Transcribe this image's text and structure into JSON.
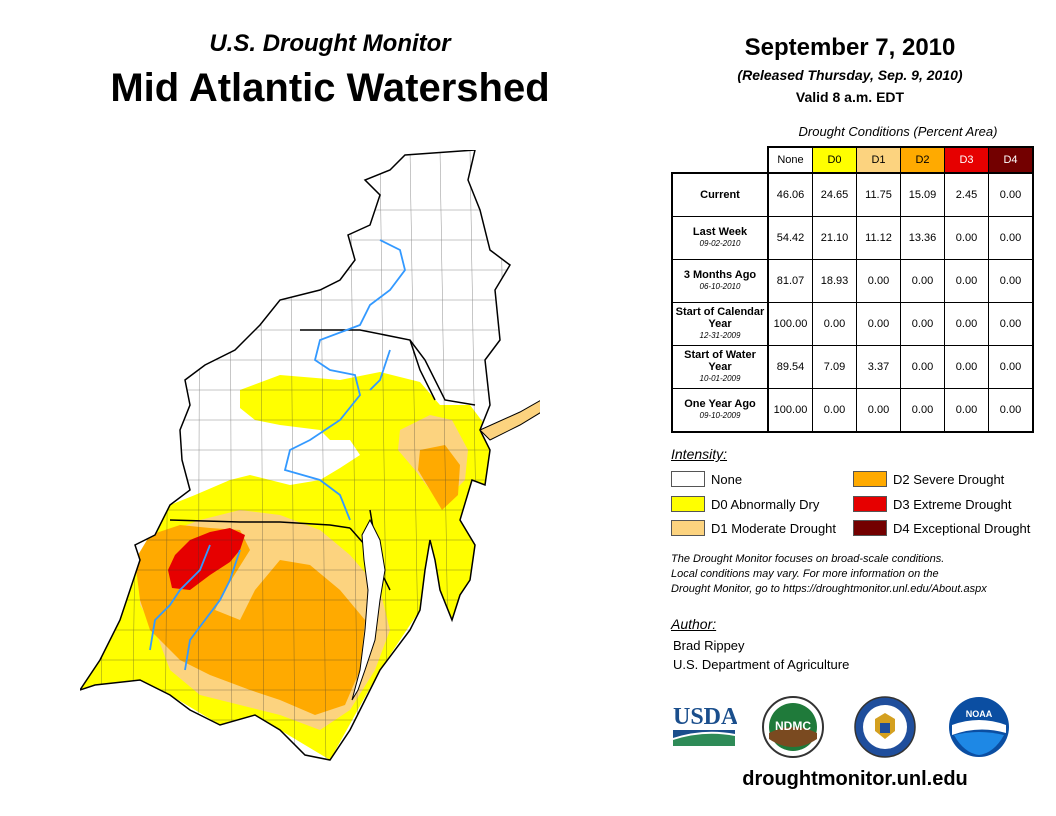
{
  "header": {
    "subtitle": "U.S. Drought Monitor",
    "title": "Mid Atlantic Watershed",
    "date": "September 7, 2010",
    "released": "(Released Thursday, Sep. 9, 2010)",
    "valid": "Valid 8 a.m. EDT"
  },
  "conditions": {
    "caption": "Drought Conditions (Percent Area)",
    "columns": [
      "None",
      "D0",
      "D1",
      "D2",
      "D3",
      "D4"
    ],
    "column_colors": [
      "#ffffff",
      "#ffff00",
      "#fcd37f",
      "#ffaa00",
      "#e60000",
      "#730000"
    ],
    "column_text_colors": [
      "#000000",
      "#000000",
      "#000000",
      "#000000",
      "#ffffff",
      "#ffffff"
    ],
    "rows": [
      {
        "label": "Current",
        "date": "",
        "values": [
          "46.06",
          "24.65",
          "11.75",
          "15.09",
          "2.45",
          "0.00"
        ]
      },
      {
        "label": "Last Week",
        "date": "09-02-2010",
        "values": [
          "54.42",
          "21.10",
          "11.12",
          "13.36",
          "0.00",
          "0.00"
        ]
      },
      {
        "label": "3 Months Ago",
        "date": "06-10-2010",
        "values": [
          "81.07",
          "18.93",
          "0.00",
          "0.00",
          "0.00",
          "0.00"
        ]
      },
      {
        "label": "Start of Calendar Year",
        "date": "12-31-2009",
        "values": [
          "100.00",
          "0.00",
          "0.00",
          "0.00",
          "0.00",
          "0.00"
        ]
      },
      {
        "label": "Start of Water Year",
        "date": "10-01-2009",
        "values": [
          "89.54",
          "7.09",
          "3.37",
          "0.00",
          "0.00",
          "0.00"
        ]
      },
      {
        "label": "One Year Ago",
        "date": "09-10-2009",
        "values": [
          "100.00",
          "0.00",
          "0.00",
          "0.00",
          "0.00",
          "0.00"
        ]
      }
    ]
  },
  "legend": {
    "title": "Intensity:",
    "items": [
      {
        "label": "None",
        "color": "#ffffff"
      },
      {
        "label": "D0 Abnormally Dry",
        "color": "#ffff00"
      },
      {
        "label": "D1 Moderate Drought",
        "color": "#fcd37f"
      },
      {
        "label": "D2 Severe Drought",
        "color": "#ffaa00"
      },
      {
        "label": "D3 Extreme Drought",
        "color": "#e60000"
      },
      {
        "label": "D4 Exceptional Drought",
        "color": "#730000"
      }
    ]
  },
  "note": {
    "line1": "The Drought Monitor focuses on broad-scale conditions.",
    "line2": "Local conditions may vary. For more information on the",
    "line3": "Drought Monitor, go to https://droughtmonitor.unl.edu/About.aspx"
  },
  "author": {
    "title": "Author:",
    "name": "Brad Rippey",
    "org": "U.S. Department of Agriculture"
  },
  "logos": {
    "usda": "USDA",
    "ndmc": "NDMC",
    "noaa": "NOAA"
  },
  "footer": {
    "url": "droughtmonitor.unl.edu"
  },
  "map": {
    "colors": {
      "none": "#ffffff",
      "d0": "#ffff00",
      "d1": "#fcd37f",
      "d2": "#ffaa00",
      "d3": "#e60000",
      "river": "#3399ff"
    }
  }
}
